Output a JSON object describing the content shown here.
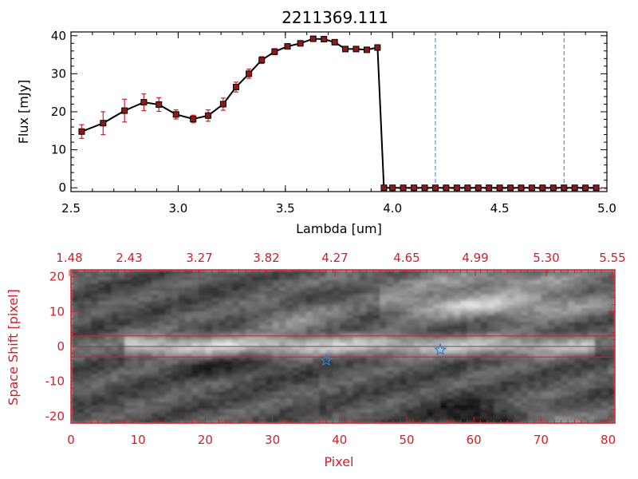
{
  "chart_data": [
    {
      "type": "line",
      "title": "2211369.111",
      "xlabel": "Lambda [um]",
      "ylabel": "Flux [mJy]",
      "xlim": [
        2.5,
        5.0
      ],
      "ylim": [
        -1,
        41
      ],
      "x_ticks": [
        "2.5",
        "3.0",
        "3.5",
        "4.0",
        "4.5",
        "5.0"
      ],
      "y_ticks": [
        "0",
        "10",
        "20",
        "30",
        "40"
      ],
      "line_color": "#000000",
      "marker_color": "#8b1a1a",
      "errorbar_color": "#d0202a",
      "vline_color": "#2a7fd0",
      "vlines": [
        4.2,
        4.8
      ],
      "series": [
        {
          "x": [
            2.55,
            2.65,
            2.75,
            2.84,
            2.91,
            2.99,
            3.07,
            3.14,
            3.21,
            3.27,
            3.33,
            3.39,
            3.45,
            3.51,
            3.57,
            3.63,
            3.68,
            3.73,
            3.78,
            3.83,
            3.88,
            3.93,
            3.96,
            4.0,
            4.05,
            4.1,
            4.15,
            4.2,
            4.25,
            4.3,
            4.35,
            4.4,
            4.45,
            4.5,
            4.55,
            4.6,
            4.65,
            4.7,
            4.75,
            4.8,
            4.85,
            4.9,
            4.95
          ],
          "y": [
            14.8,
            17.0,
            20.3,
            22.5,
            21.9,
            19.3,
            18.1,
            19.0,
            22.0,
            26.5,
            30.0,
            33.6,
            35.8,
            37.2,
            38.0,
            39.2,
            39.1,
            38.3,
            36.5,
            36.5,
            36.3,
            36.9,
            0,
            0,
            0,
            0,
            0,
            0,
            0,
            0,
            0,
            0,
            0,
            0,
            0,
            0,
            0,
            0,
            0,
            0,
            0,
            0,
            0
          ],
          "yerr": [
            1.8,
            3.0,
            3.0,
            2.2,
            1.8,
            1.2,
            1.0,
            1.5,
            1.6,
            1.3,
            1.2,
            0.9,
            0.8,
            0.6,
            0.6,
            0.6,
            0.6,
            0.6,
            0.6,
            0.6,
            0.5,
            0.6,
            0,
            0,
            0,
            0,
            0,
            0,
            0,
            0,
            0,
            0,
            0,
            0,
            0,
            0,
            0,
            0,
            0,
            0,
            0,
            0,
            0
          ]
        }
      ]
    },
    {
      "type": "heatmap",
      "xlabel": "Pixel",
      "ylabel": "Space Shift [pixel]",
      "xlim": [
        0,
        81
      ],
      "ylim": [
        -22,
        22
      ],
      "x_ticks": [
        "0",
        "10",
        "20",
        "30",
        "40",
        "50",
        "60",
        "70",
        "80"
      ],
      "y_ticks": [
        "-20",
        "-10",
        "0",
        "10",
        "20"
      ],
      "top_axis_ticks": [
        "1.48",
        "2.43",
        "3.27",
        "3.82",
        "4.27",
        "4.65",
        "4.99",
        "5.30",
        "5.55"
      ],
      "axis_color": "#d0202a",
      "trace_center": 0,
      "trace_extraction_limits": [
        -3,
        3
      ],
      "stars": [
        {
          "x": 38,
          "y": -4
        },
        {
          "x": 55,
          "y": -1
        }
      ],
      "star_color": "#2a7fd0"
    }
  ]
}
